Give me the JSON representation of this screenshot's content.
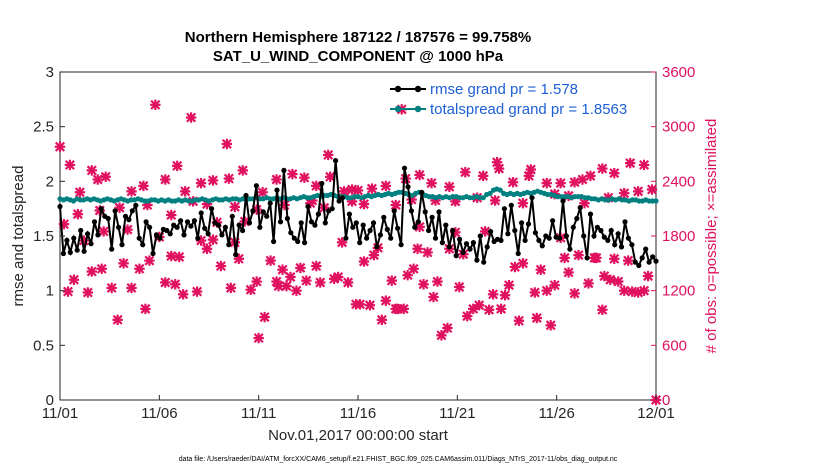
{
  "chart_data": {
    "type": "line",
    "title_line1": "Northern Hemisphere 187122 / 187576 = 99.758%",
    "title_line2": "SAT_U_WIND_COMPONENT @ 1000 hPa",
    "xlabel": "Nov.01,2017 00:00:00 start",
    "ylabel": "rmse and totalspread",
    "ylabel_right": "# of obs: o=possible; ×=assimilated",
    "footnote": "data file: /Users/raeder/DAI/ATM_forcXX/CAM6_setup/f.e21.FHIST_BGC.f09_025.CAM6assim.011/Diags_NTrS_2017-11/obs_diag_output.nc",
    "x_tick_labels": [
      "11/01",
      "11/06",
      "11/11",
      "11/16",
      "11/21",
      "11/26",
      "12/01"
    ],
    "xlim": [
      0,
      30
    ],
    "ylim": [
      0,
      3
    ],
    "y_ticks": [
      "0",
      "0.5",
      "1",
      "1.5",
      "2",
      "2.5",
      "3"
    ],
    "ylim_right": [
      0,
      3600
    ],
    "y_ticks_right": [
      "0",
      "600",
      "1200",
      "1800",
      "2400",
      "3000",
      "3600"
    ],
    "colors": {
      "rmse": "#000000",
      "totalspread": "#008080",
      "obs": "#e0115f",
      "legend_text": "#1f5fd6"
    },
    "series": [
      {
        "name": "rmse grand pr = 1.578",
        "values": [
          1.77,
          1.34,
          1.46,
          1.35,
          1.48,
          1.37,
          1.55,
          1.36,
          1.52,
          1.43,
          1.63,
          1.51,
          1.75,
          1.68,
          1.66,
          1.38,
          1.73,
          1.58,
          1.42,
          1.68,
          1.65,
          1.73,
          1.78,
          1.48,
          1.42,
          1.63,
          1.58,
          1.34,
          1.51,
          1.48,
          1.56,
          1.55,
          1.52,
          1.6,
          1.58,
          1.64,
          1.51,
          1.63,
          1.59,
          1.64,
          1.48,
          1.71,
          1.57,
          1.52,
          1.75,
          1.62,
          1.6,
          1.51,
          1.58,
          1.42,
          1.68,
          1.33,
          1.6,
          1.55,
          1.87,
          1.62,
          1.73,
          1.96,
          1.58,
          1.72,
          1.68,
          1.8,
          1.45,
          1.92,
          1.63,
          2.1,
          1.66,
          1.53,
          1.48,
          1.45,
          1.62,
          1.44,
          1.77,
          1.63,
          1.6,
          1.7,
          1.98,
          1.62,
          1.73,
          1.75,
          2.19,
          1.82,
          1.85,
          1.48,
          1.7,
          1.58,
          1.62,
          1.44,
          1.6,
          1.48,
          1.55,
          1.62,
          1.4,
          1.51,
          1.67,
          1.56,
          1.48,
          1.73,
          1.57,
          1.42,
          2.12,
          1.95,
          1.73,
          1.58,
          1.63,
          1.9,
          1.72,
          1.55,
          1.67,
          1.48,
          1.72,
          1.44,
          1.6,
          1.4,
          1.55,
          1.32,
          1.47,
          1.35,
          1.43,
          1.38,
          1.44,
          1.28,
          1.5,
          1.26,
          1.4,
          1.54,
          1.45,
          1.47,
          1.46,
          1.75,
          1.52,
          1.78,
          1.55,
          1.34,
          1.62,
          1.46,
          1.61,
          1.85,
          1.53,
          1.46,
          1.41,
          1.5,
          1.48,
          1.64,
          1.49,
          1.48,
          1.82,
          1.5,
          1.38,
          1.58,
          1.66,
          1.76,
          1.5,
          1.3,
          1.7,
          1.5,
          1.58,
          1.55,
          1.49,
          1.46,
          1.55,
          1.42,
          1.52,
          1.4,
          1.63,
          1.48,
          1.42,
          1.26,
          1.23,
          1.3,
          1.38,
          1.26,
          1.31,
          1.27
        ]
      },
      {
        "name": "totalspread grand pr = 1.8563",
        "values": [
          1.84,
          1.83,
          1.84,
          1.83,
          1.82,
          1.84,
          1.83,
          1.83,
          1.84,
          1.83,
          1.84,
          1.83,
          1.82,
          1.83,
          1.84,
          1.83,
          1.82,
          1.83,
          1.84,
          1.83,
          1.82,
          1.83,
          1.83,
          1.84,
          1.83,
          1.82,
          1.82,
          1.83,
          1.83,
          1.82,
          1.83,
          1.82,
          1.83,
          1.82,
          1.82,
          1.83,
          1.82,
          1.83,
          1.82,
          1.82,
          1.83,
          1.83,
          1.84,
          1.83,
          1.82,
          1.83,
          1.84,
          1.83,
          1.83,
          1.84,
          1.83,
          1.84,
          1.84,
          1.83,
          1.84,
          1.83,
          1.84,
          1.84,
          1.85,
          1.84,
          1.84,
          1.85,
          1.84,
          1.84,
          1.85,
          1.84,
          1.85,
          1.84,
          1.84,
          1.85,
          1.84,
          1.85,
          1.86,
          1.85,
          1.85,
          1.86,
          1.87,
          1.86,
          1.87,
          1.87,
          1.88,
          1.87,
          1.86,
          1.86,
          1.86,
          1.85,
          1.85,
          1.86,
          1.86,
          1.85,
          1.86,
          1.87,
          1.86,
          1.87,
          1.88,
          1.87,
          1.88,
          1.89,
          1.88,
          1.89,
          1.9,
          1.9,
          1.89,
          1.88,
          1.87,
          1.89,
          1.9,
          1.89,
          1.87,
          1.86,
          1.86,
          1.85,
          1.86,
          1.85,
          1.86,
          1.85,
          1.86,
          1.86,
          1.85,
          1.85,
          1.86,
          1.85,
          1.85,
          1.86,
          1.85,
          1.85,
          1.88,
          1.89,
          1.92,
          1.93,
          1.92,
          1.89,
          1.88,
          1.89,
          1.88,
          1.89,
          1.88,
          1.89,
          1.9,
          1.89,
          1.9,
          1.91,
          1.9,
          1.89,
          1.88,
          1.88,
          1.87,
          1.86,
          1.86,
          1.86,
          1.86,
          1.85,
          1.86,
          1.86,
          1.86,
          1.85,
          1.85,
          1.84,
          1.84,
          1.83,
          1.84,
          1.83,
          1.83,
          1.84,
          1.83,
          1.84,
          1.83,
          1.83,
          1.82,
          1.83,
          1.83,
          1.82,
          1.82,
          1.83,
          1.82,
          1.82,
          1.82
        ]
      },
      {
        "name": "obs assimilated",
        "axis": "right",
        "points": [
          [
            0.0,
            2780
          ],
          [
            0.2,
            1930
          ],
          [
            0.4,
            1190
          ],
          [
            0.7,
            1320
          ],
          [
            1.2,
            1750
          ],
          [
            1.4,
            1180
          ],
          [
            1.6,
            1410
          ],
          [
            1.9,
            2420
          ],
          [
            2.1,
            1440
          ],
          [
            2.2,
            1850
          ],
          [
            2.6,
            1230
          ],
          [
            2.9,
            880
          ],
          [
            3.2,
            1500
          ],
          [
            3.4,
            1870
          ],
          [
            3.6,
            1230
          ],
          [
            4.0,
            1440
          ],
          [
            4.3,
            1000
          ],
          [
            4.5,
            1530
          ],
          [
            4.8,
            3240
          ],
          [
            5.0,
            1790
          ],
          [
            5.3,
            1290
          ],
          [
            5.6,
            1580
          ],
          [
            5.8,
            1270
          ],
          [
            6.0,
            1570
          ],
          [
            6.2,
            1160
          ],
          [
            6.6,
            3100
          ],
          [
            6.9,
            1190
          ],
          [
            7.1,
            1750
          ],
          [
            7.4,
            1660
          ],
          [
            7.7,
            1760
          ],
          [
            7.9,
            1950
          ],
          [
            8.1,
            1470
          ],
          [
            8.4,
            2810
          ],
          [
            8.6,
            1230
          ],
          [
            8.8,
            1730
          ],
          [
            9.0,
            1550
          ],
          [
            9.3,
            1960
          ],
          [
            9.6,
            1210
          ],
          [
            9.9,
            1300
          ],
          [
            10.0,
            680
          ],
          [
            10.3,
            910
          ],
          [
            10.6,
            1530
          ],
          [
            10.9,
            1300
          ],
          [
            11.0,
            1250
          ],
          [
            11.2,
            1430
          ],
          [
            11.4,
            1250
          ],
          [
            11.6,
            1350
          ],
          [
            11.9,
            1200
          ],
          [
            12.1,
            1450
          ],
          [
            12.4,
            1310
          ],
          [
            12.6,
            2160
          ],
          [
            12.9,
            1470
          ],
          [
            13.1,
            1290
          ],
          [
            13.5,
            2690
          ],
          [
            13.8,
            1330
          ],
          [
            14.0,
            1350
          ],
          [
            14.2,
            1730
          ],
          [
            14.5,
            1290
          ],
          [
            14.7,
            2310
          ],
          [
            14.9,
            1050
          ],
          [
            15.1,
            1050
          ],
          [
            15.3,
            1520
          ],
          [
            15.6,
            1040
          ],
          [
            15.8,
            1590
          ],
          [
            16.0,
            1670
          ],
          [
            16.2,
            880
          ],
          [
            16.4,
            1090
          ],
          [
            16.7,
            1310
          ],
          [
            16.9,
            1000
          ],
          [
            17.0,
            1000
          ],
          [
            17.2,
            3190
          ],
          [
            17.3,
            1000
          ],
          [
            17.5,
            1370
          ],
          [
            17.8,
            1440
          ],
          [
            18.0,
            1660
          ],
          [
            18.1,
            1900
          ],
          [
            18.3,
            1270
          ],
          [
            18.5,
            1620
          ],
          [
            18.8,
            1130
          ],
          [
            19.0,
            1300
          ],
          [
            19.2,
            710
          ],
          [
            19.5,
            790
          ],
          [
            19.6,
            1660
          ],
          [
            19.9,
            1840
          ],
          [
            20.1,
            1240
          ],
          [
            20.3,
            1600
          ],
          [
            20.5,
            920
          ],
          [
            20.8,
            1000
          ],
          [
            21.1,
            1040
          ],
          [
            21.4,
            1850
          ],
          [
            21.6,
            990
          ],
          [
            21.8,
            1160
          ],
          [
            22.0,
            2610
          ],
          [
            22.2,
            1000
          ],
          [
            22.4,
            1150
          ],
          [
            22.6,
            1260
          ],
          [
            22.9,
            1460
          ],
          [
            23.1,
            870
          ],
          [
            23.3,
            1500
          ],
          [
            23.6,
            2460
          ],
          [
            23.9,
            1180
          ],
          [
            24.0,
            900
          ],
          [
            24.2,
            1430
          ],
          [
            24.5,
            1200
          ],
          [
            24.7,
            820
          ],
          [
            24.9,
            1260
          ],
          [
            25.2,
            1780
          ],
          [
            25.4,
            1560
          ],
          [
            25.6,
            1400
          ],
          [
            25.9,
            1170
          ],
          [
            26.1,
            1590
          ],
          [
            26.3,
            2420
          ],
          [
            26.6,
            1280
          ],
          [
            26.9,
            1560
          ],
          [
            27.0,
            1560
          ],
          [
            27.3,
            990
          ],
          [
            27.4,
            1360
          ],
          [
            27.7,
            1320
          ],
          [
            27.9,
            1550
          ],
          [
            28.1,
            1300
          ],
          [
            28.4,
            1200
          ],
          [
            28.6,
            1530
          ],
          [
            28.8,
            1190
          ],
          [
            29.1,
            1180
          ],
          [
            29.4,
            1200
          ],
          [
            29.6,
            1360
          ],
          [
            30.0,
            0
          ],
          [
            0.5,
            2580
          ],
          [
            1.0,
            2280
          ],
          [
            1.6,
            2520
          ],
          [
            2.3,
            2450
          ],
          [
            3.6,
            2290
          ],
          [
            4.2,
            2350
          ],
          [
            5.3,
            2420
          ],
          [
            5.9,
            2570
          ],
          [
            6.3,
            2290
          ],
          [
            7.1,
            2380
          ],
          [
            7.7,
            2410
          ],
          [
            8.5,
            2430
          ],
          [
            9.2,
            2520
          ],
          [
            10.2,
            2280
          ],
          [
            10.9,
            2420
          ],
          [
            11.7,
            2480
          ],
          [
            12.3,
            2440
          ],
          [
            12.9,
            2350
          ],
          [
            13.6,
            2450
          ],
          [
            14.3,
            2290
          ],
          [
            15.0,
            2300
          ],
          [
            15.7,
            2320
          ],
          [
            16.4,
            2350
          ],
          [
            17.4,
            2430
          ],
          [
            18.1,
            2470
          ],
          [
            18.7,
            2380
          ],
          [
            19.6,
            2340
          ],
          [
            20.4,
            2500
          ],
          [
            21.3,
            2460
          ],
          [
            22.1,
            2540
          ],
          [
            22.8,
            2390
          ],
          [
            23.7,
            2530
          ],
          [
            24.5,
            2380
          ],
          [
            25.2,
            2380
          ],
          [
            25.9,
            2390
          ],
          [
            26.7,
            2460
          ],
          [
            27.3,
            2540
          ],
          [
            27.9,
            2490
          ],
          [
            28.7,
            2600
          ],
          [
            29.4,
            2580
          ],
          [
            0.9,
            2040
          ],
          [
            2.0,
            2080
          ],
          [
            3.0,
            2110
          ],
          [
            4.4,
            2140
          ],
          [
            5.6,
            2030
          ],
          [
            6.7,
            2180
          ],
          [
            7.4,
            2150
          ],
          [
            8.8,
            2120
          ],
          [
            9.9,
            2090
          ],
          [
            11.3,
            2140
          ],
          [
            12.7,
            2190
          ],
          [
            13.3,
            2110
          ],
          [
            14.7,
            2180
          ],
          [
            15.3,
            2150
          ],
          [
            16.9,
            2140
          ],
          [
            17.7,
            2200
          ],
          [
            18.9,
            2190
          ],
          [
            19.9,
            2180
          ],
          [
            21.0,
            2220
          ],
          [
            21.9,
            2190
          ],
          [
            23.3,
            2160
          ],
          [
            24.9,
            2260
          ],
          [
            25.6,
            2240
          ],
          [
            26.4,
            2160
          ],
          [
            27.6,
            2220
          ],
          [
            28.4,
            2270
          ],
          [
            29.1,
            2290
          ],
          [
            29.8,
            2310
          ]
        ]
      }
    ],
    "legend_position": "top-right"
  }
}
